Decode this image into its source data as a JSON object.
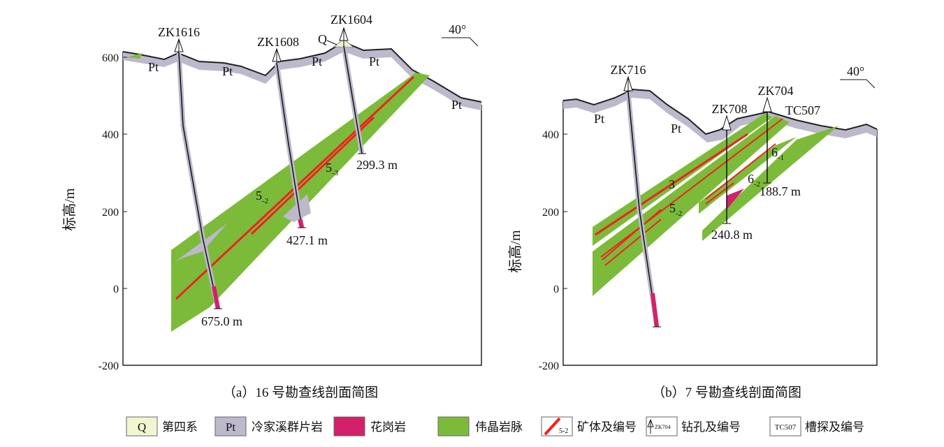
{
  "colors": {
    "quaternary": "#f3f5d0",
    "pt": "#bdb8cc",
    "granite": "#d4206a",
    "pegmatite": "#7cbb3a",
    "orebody": "#ee2222"
  },
  "panel_a": {
    "caption": "（a）16 号勘查线剖面简图",
    "ylabel": "标高/m",
    "ticks": [
      "600",
      "400",
      "200",
      "0",
      "-200"
    ],
    "orientation": "40°",
    "drills": [
      {
        "id": "ZK1616",
        "depth": "675.0 m"
      },
      {
        "id": "ZK1608",
        "depth": "427.1 m"
      },
      {
        "id": "ZK1604",
        "depth": "299.3 m"
      }
    ],
    "unit_labels": [
      "Pt",
      "Pt",
      "Pt",
      "Pt",
      "Pt",
      "Q"
    ],
    "ore_labels": [
      "5",
      "-2",
      "5",
      "-3"
    ]
  },
  "panel_b": {
    "caption": "（b）7 号勘查线剖面简图",
    "ylabel": "标高/m",
    "ticks": [
      "400",
      "200",
      "0",
      "-200"
    ],
    "orientation": "40°",
    "drills": [
      {
        "id": "ZK716"
      },
      {
        "id": "ZK708",
        "depth": "240.8 m"
      },
      {
        "id": "ZK704",
        "depth": "188.7 m"
      }
    ],
    "trench": "TC507",
    "unit_labels": [
      "Pt",
      "Pt"
    ],
    "ore_labels": [
      "3",
      "5",
      "-2",
      "6",
      "-1",
      "6",
      "-2"
    ]
  },
  "legend": [
    {
      "symbol": "Q",
      "label": "第四系"
    },
    {
      "symbol": "Pt",
      "label": "冷家溪群片岩"
    },
    {
      "symbol": "",
      "label": "花岗岩"
    },
    {
      "symbol": "",
      "label": "伟晶岩脉"
    },
    {
      "symbol": "5-2",
      "label": "矿体及编号"
    },
    {
      "symbol": "ZK704",
      "label": "钻孔及编号"
    },
    {
      "symbol": "TC507",
      "label": "槽探及编号"
    }
  ]
}
